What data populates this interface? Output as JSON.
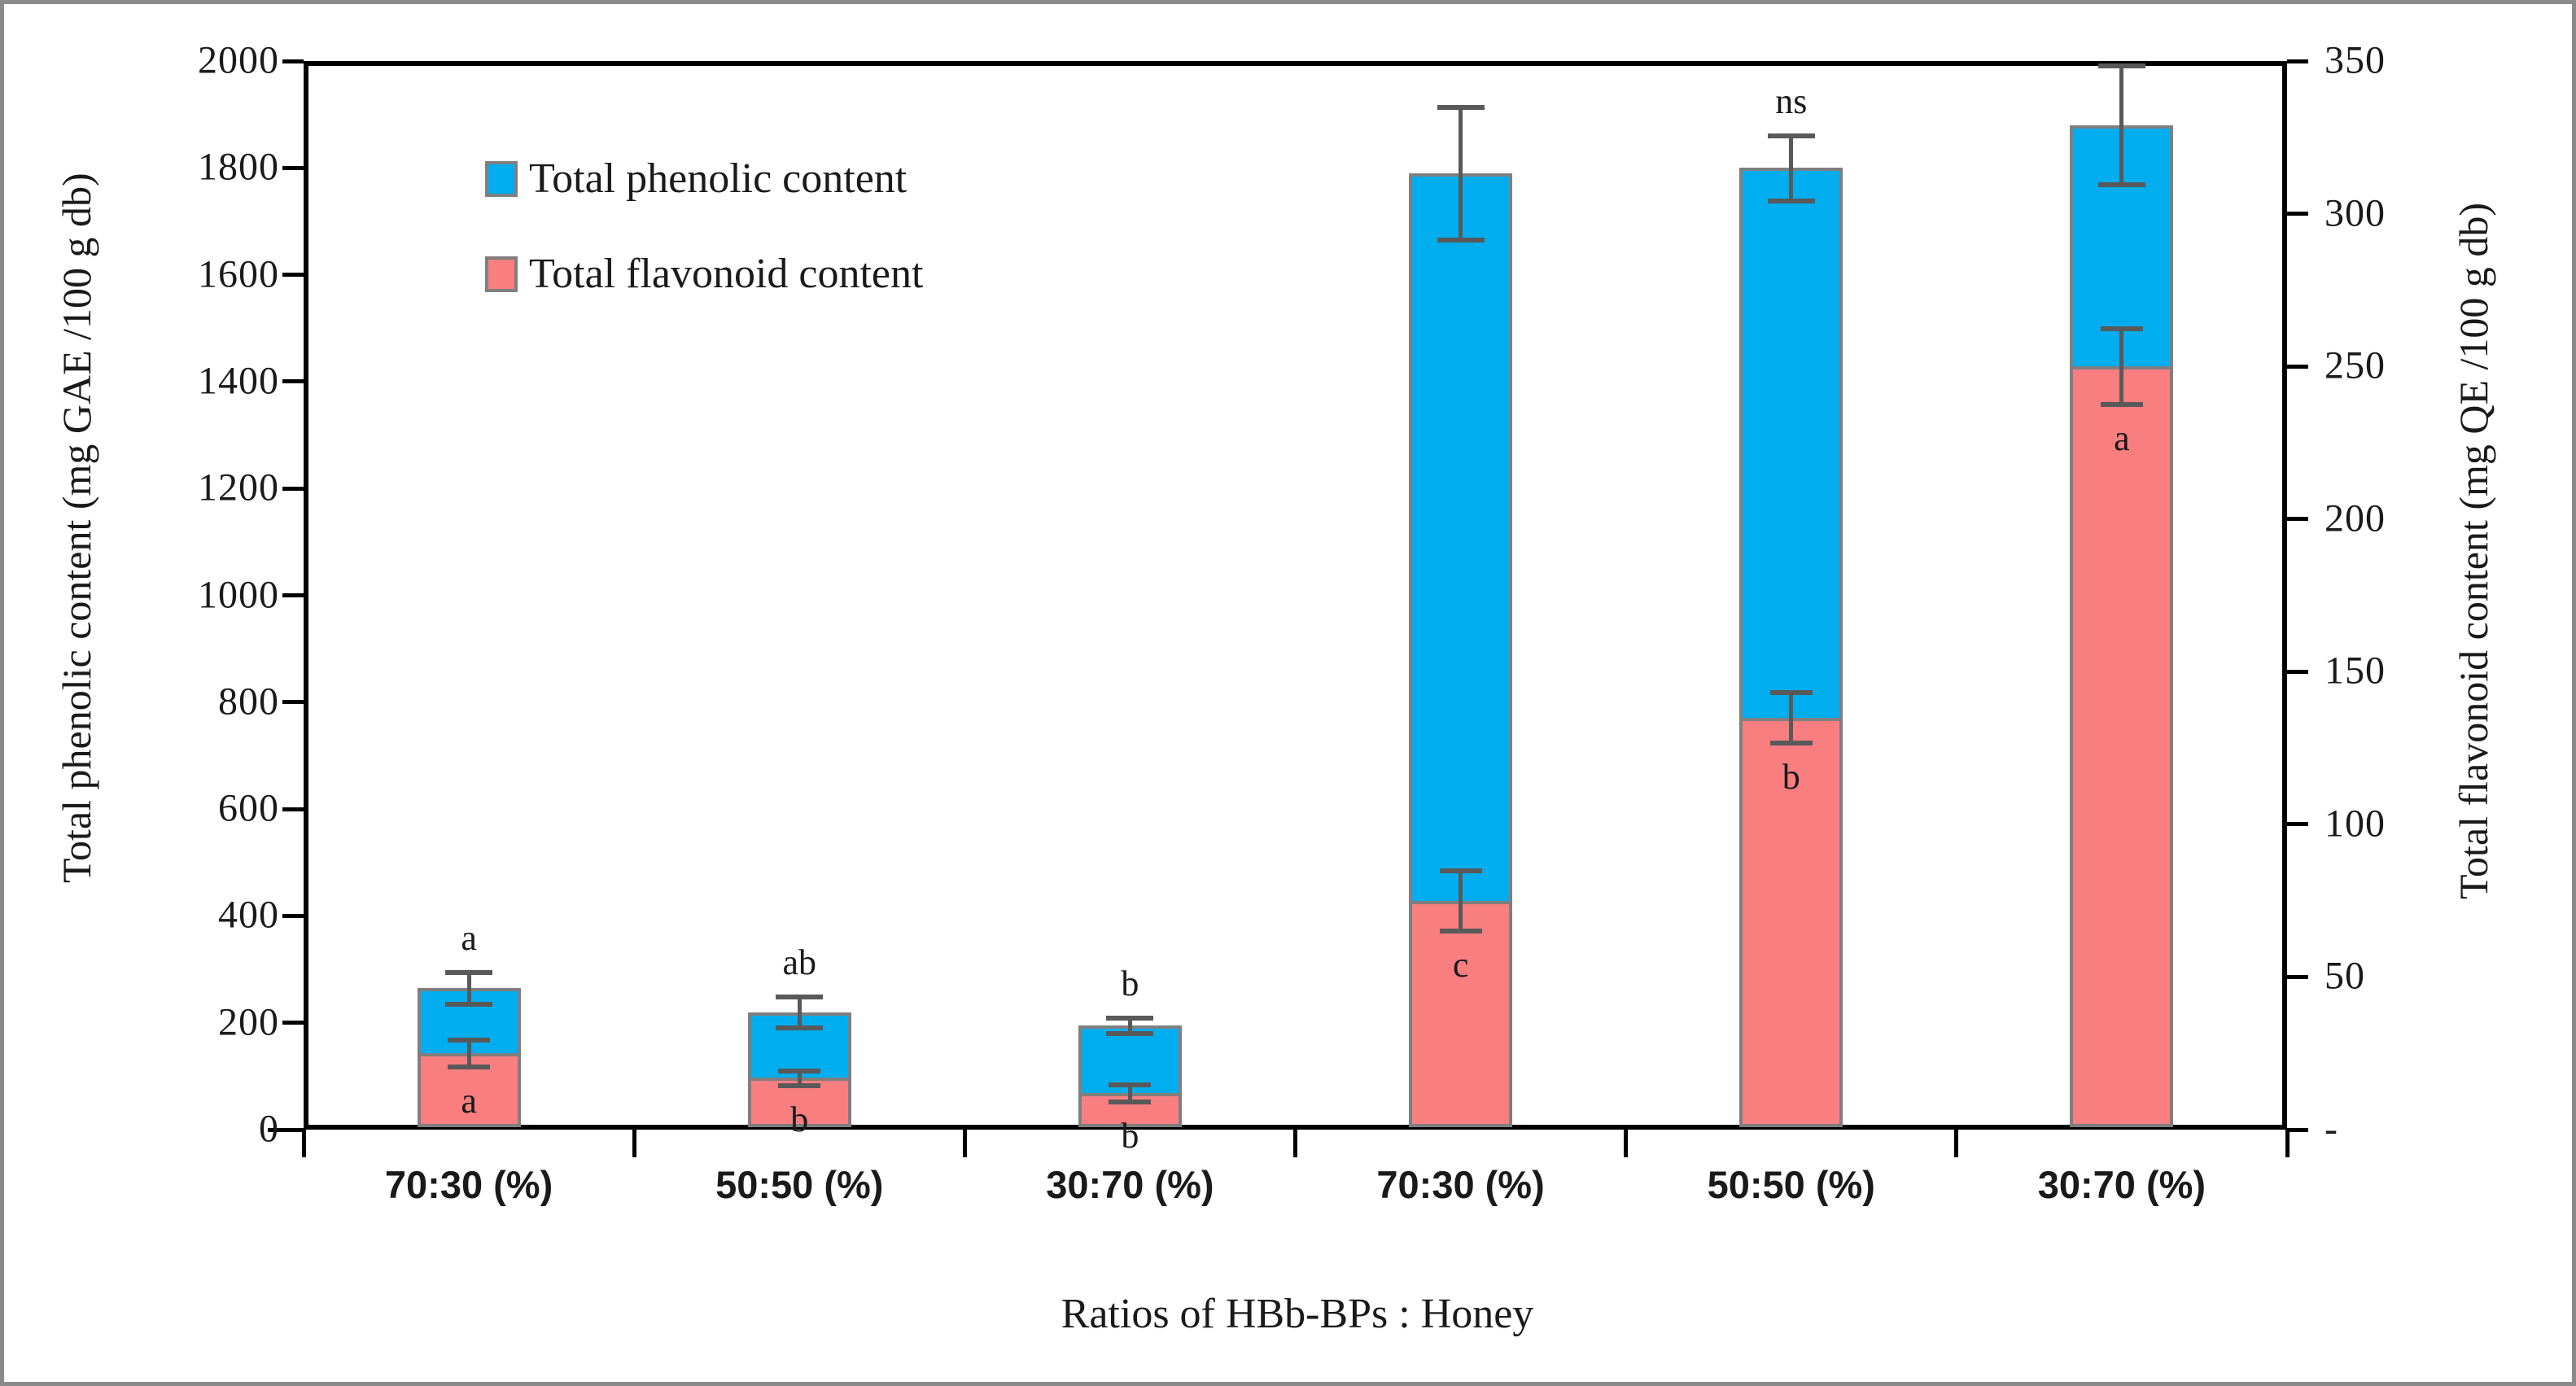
{
  "figure": {
    "border_color": "#8a8a8a",
    "background": "#ffffff"
  },
  "chart_data": {
    "type": "bar",
    "title": "",
    "xlabel": "Ratios of HBb-BPs : Honey",
    "ylabel_left": "Total phenolic content (mg GAE /100 g db)",
    "ylabel_right": "Total flavonoid content (mg QE /100 g db)",
    "categories": [
      "70:30 (%)",
      "50:50 (%)",
      "30:70 (%)",
      "70:30 (%)",
      "50:50 (%)",
      "30:70 (%)"
    ],
    "series": [
      {
        "name": "Total phenolic content",
        "axis": "left",
        "color": "#00AEEF",
        "values": [
          265,
          220,
          195,
          1790,
          1800,
          1880
        ],
        "errors": [
          30,
          30,
          15,
          125,
          62,
          112
        ],
        "sig_letters": [
          "a",
          "ab",
          "b",
          "",
          "ns",
          ""
        ]
      },
      {
        "name": "Total flavonoid content",
        "axis": "right",
        "color": "#F87E80",
        "values": [
          25,
          17,
          12,
          75,
          135,
          250
        ],
        "errors": [
          4.5,
          2.5,
          3,
          10,
          8.5,
          12.5
        ],
        "sig_letters": [
          "a",
          "b",
          "b",
          "c",
          "b",
          "a"
        ]
      }
    ],
    "left_axis": {
      "min": 0,
      "max": 2000,
      "tick_step": 200,
      "tick_labels": [
        "0",
        "200",
        "400",
        "600",
        "800",
        "1000",
        "1200",
        "1400",
        "1600",
        "1800",
        "2000"
      ]
    },
    "right_axis": {
      "min": 0,
      "max": 350,
      "tick_step": 50,
      "tick_labels": [
        "-",
        "50",
        "100",
        "150",
        "200",
        "250",
        "300",
        "350"
      ]
    },
    "legend_position": "inside-top-left",
    "grid": false,
    "bar_style": {
      "border_color": "#7f7f7f",
      "error_color": "#595959"
    }
  }
}
